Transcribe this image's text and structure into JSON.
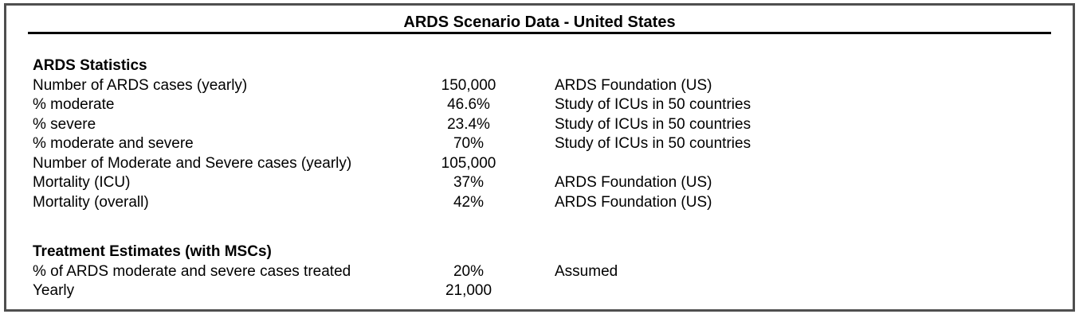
{
  "title": "ARDS Scenario Data - United States",
  "sections": [
    {
      "header": "ARDS Statistics",
      "rows": [
        {
          "label": "Number of ARDS cases (yearly)",
          "value": "150,000",
          "source": "ARDS Foundation (US)"
        },
        {
          "label": "% moderate",
          "value": "46.6%",
          "source": "Study of ICUs in 50 countries"
        },
        {
          "label": "% severe",
          "value": "23.4%",
          "source": "Study of ICUs in 50 countries"
        },
        {
          "label": "% moderate and severe",
          "value": "70%",
          "source": "Study of ICUs in 50 countries"
        },
        {
          "label": "Number of Moderate and Severe cases (yearly)",
          "value": "105,000",
          "source": ""
        },
        {
          "label": "Mortality (ICU)",
          "value": "37%",
          "source": "ARDS Foundation (US)"
        },
        {
          "label": "Mortality (overall)",
          "value": "42%",
          "source": "ARDS Foundation (US)"
        }
      ]
    },
    {
      "header": "Treatment Estimates (with MSCs)",
      "rows": [
        {
          "label": "% of ARDS moderate and severe cases treated",
          "value": "20%",
          "source": "Assumed"
        },
        {
          "label": "Yearly",
          "value": "21,000",
          "source": ""
        }
      ]
    }
  ],
  "colors": {
    "background": "#ffffff",
    "frame_border": "#4f4f4f",
    "title_rule": "#000000",
    "text": "#000000"
  }
}
